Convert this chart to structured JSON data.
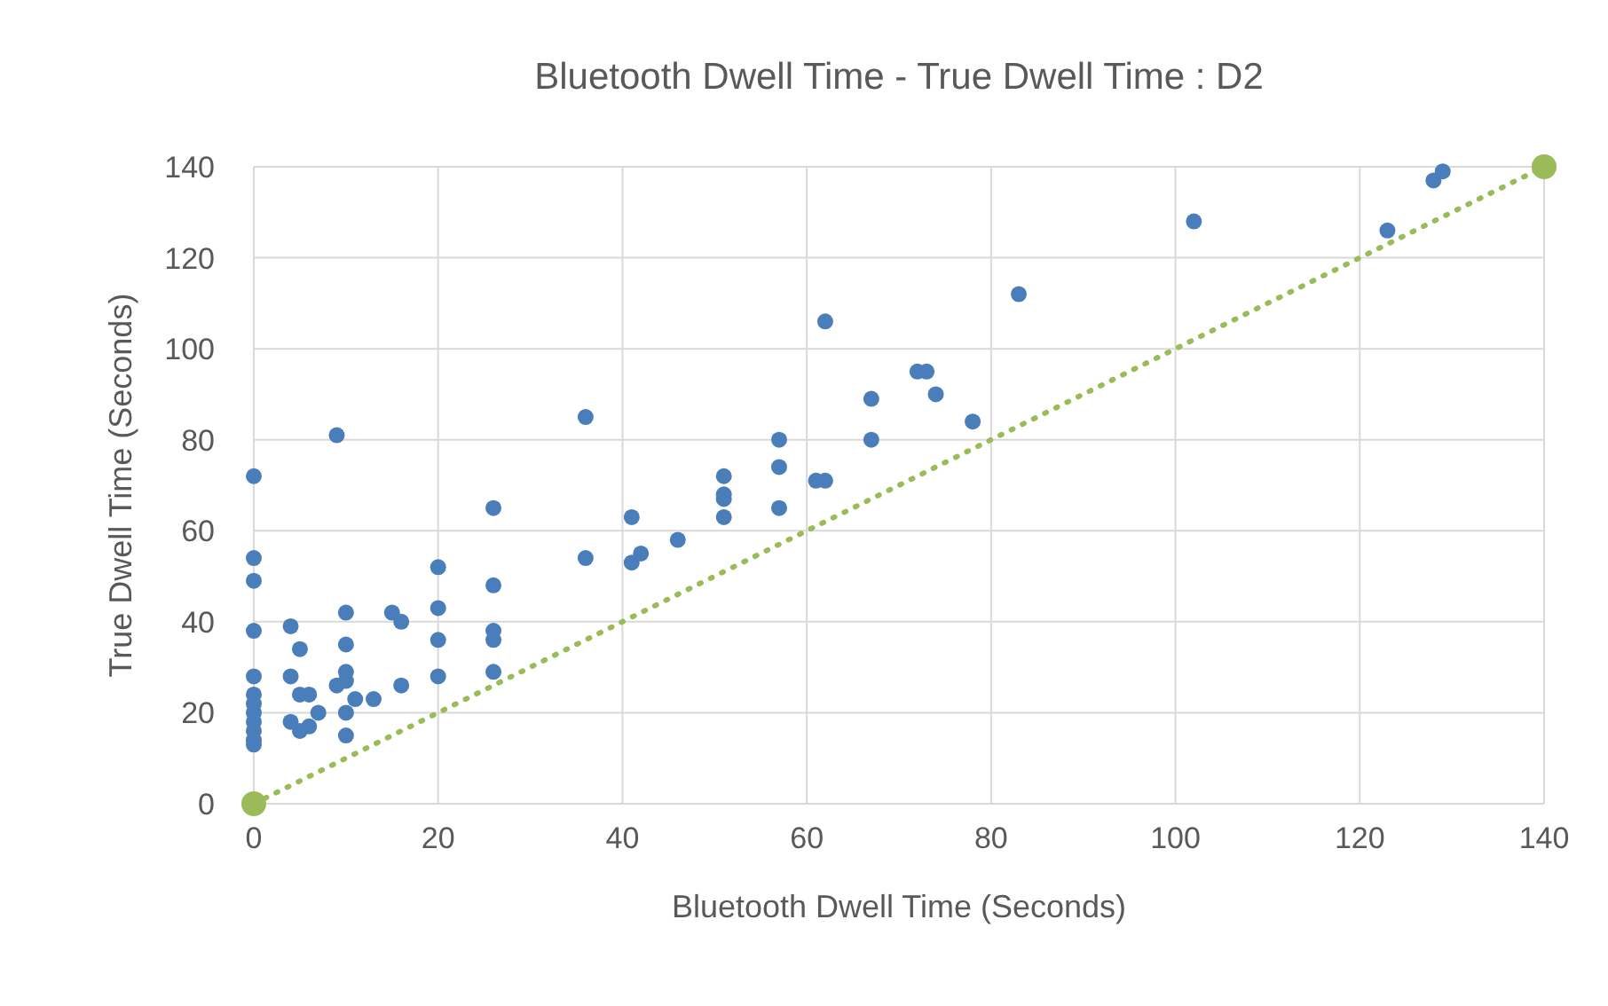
{
  "chart_data": {
    "type": "scatter",
    "title": "Bluetooth Dwell Time - True Dwell Time : D2",
    "xlabel": "Bluetooth Dwell Time (Seconds)",
    "ylabel": "True Dwell Time (Seconds)",
    "xlim": [
      0,
      140
    ],
    "ylim": [
      0,
      140
    ],
    "xticks": [
      0,
      20,
      40,
      60,
      80,
      100,
      120,
      140
    ],
    "yticks": [
      0,
      20,
      40,
      60,
      80,
      100,
      120,
      140
    ],
    "grid": true,
    "marker": "circle",
    "series": [
      {
        "color": "#4a7ebb",
        "x": [
          0,
          0,
          0,
          0,
          0,
          0,
          0,
          0,
          0,
          0,
          0,
          0,
          4,
          4,
          4,
          5,
          5,
          5,
          6,
          6,
          7,
          9,
          9,
          10,
          10,
          10,
          10,
          10,
          10,
          11,
          13,
          15,
          16,
          16,
          20,
          20,
          20,
          20,
          26,
          26,
          26,
          26,
          26,
          36,
          36,
          41,
          41,
          42,
          46,
          51,
          51,
          51,
          51,
          57,
          57,
          57,
          61,
          62,
          62,
          67,
          67,
          72,
          73,
          74,
          78,
          83,
          102,
          123,
          128,
          129
        ],
        "values": [
          72,
          54,
          49,
          38,
          28,
          24,
          22,
          20,
          18,
          16,
          14,
          13,
          39,
          28,
          18,
          34,
          24,
          16,
          24,
          17,
          20,
          26,
          81,
          42,
          35,
          29,
          27,
          20,
          15,
          23,
          23,
          42,
          40,
          26,
          52,
          43,
          36,
          28,
          65,
          48,
          38,
          36,
          29,
          85,
          54,
          63,
          53,
          55,
          58,
          72,
          68,
          67,
          63,
          80,
          74,
          65,
          71,
          71,
          106,
          89,
          80,
          95,
          95,
          90,
          84,
          112,
          128,
          126,
          137,
          139
        ]
      },
      {
        "type": "line",
        "color": "#9bbb59",
        "line_style": "dotted",
        "x": [
          0,
          140
        ],
        "values": [
          0,
          140
        ]
      }
    ]
  }
}
